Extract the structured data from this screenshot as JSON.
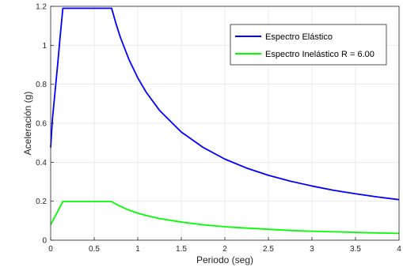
{
  "chart_data": {
    "type": "line",
    "xlabel": "Periodo (seg)",
    "ylabel": "Aceleración (g)",
    "xlim": [
      0,
      4
    ],
    "ylim": [
      0,
      1.2
    ],
    "xticks": [
      "0",
      "0.5",
      "1",
      "1.5",
      "2",
      "2.5",
      "3",
      "3.5",
      "4"
    ],
    "yticks": [
      "0",
      "0.2",
      "0.4",
      "0.6",
      "0.8",
      "1",
      "1.2"
    ],
    "grid": true,
    "legend_position": "top-right",
    "colors": {
      "elastic": "#0000ff",
      "inelastic": "#00ff00",
      "grid": "#e6e6e6",
      "axis": "#262626"
    },
    "series": [
      {
        "name": "Espectro Elástico",
        "x": [
          0,
          0.02,
          0.05,
          0.08,
          0.11,
          0.14,
          0.3,
          0.5,
          0.7,
          0.75,
          0.8,
          0.9,
          1.0,
          1.1,
          1.25,
          1.5,
          1.75,
          2.0,
          2.25,
          2.5,
          2.75,
          3.0,
          3.25,
          3.5,
          3.75,
          4.0
        ],
        "values": [
          0.475,
          0.62,
          0.76,
          0.9,
          1.05,
          1.19,
          1.19,
          1.19,
          1.19,
          1.111,
          1.041,
          0.926,
          0.833,
          0.757,
          0.666,
          0.555,
          0.476,
          0.416,
          0.37,
          0.333,
          0.303,
          0.278,
          0.256,
          0.238,
          0.222,
          0.208
        ]
      },
      {
        "name": "Espectro Inelástico R = 6.00",
        "x": [
          0,
          0.14,
          0.3,
          0.5,
          0.7,
          0.75,
          0.8,
          0.9,
          1.0,
          1.1,
          1.25,
          1.5,
          1.75,
          2.0,
          2.25,
          2.5,
          2.75,
          3.0,
          3.25,
          3.5,
          3.75,
          4.0
        ],
        "values": [
          0.079,
          0.198,
          0.198,
          0.198,
          0.198,
          0.185,
          0.174,
          0.154,
          0.139,
          0.126,
          0.111,
          0.093,
          0.079,
          0.069,
          0.062,
          0.056,
          0.05,
          0.046,
          0.043,
          0.04,
          0.037,
          0.035
        ]
      }
    ]
  }
}
